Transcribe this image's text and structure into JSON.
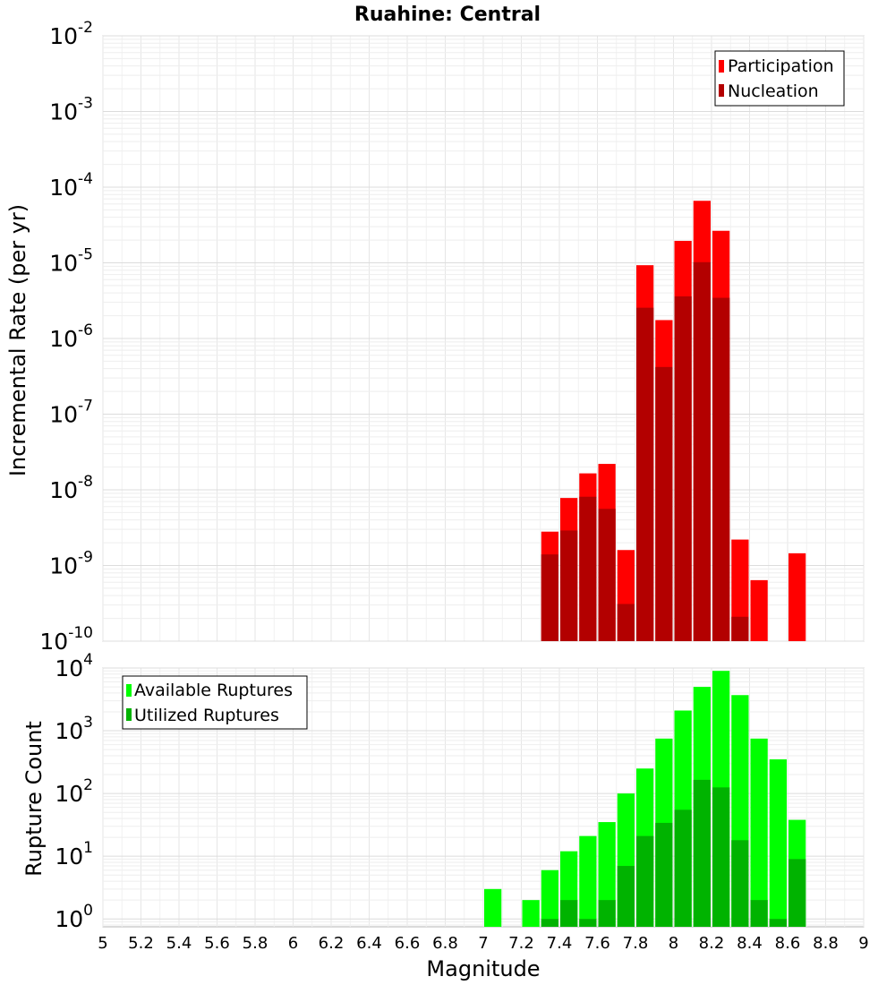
{
  "chart_data": [
    {
      "type": "bar",
      "title": "Ruahine: Central",
      "xlabel": "",
      "ylabel": "Incremental Rate (per yr)",
      "yscale": "log",
      "xlim": [
        5,
        9
      ],
      "ylim": [
        1e-10,
        0.01
      ],
      "ytick_labels": [
        {
          "base": "10",
          "exp": "-10"
        },
        {
          "base": "10",
          "exp": "-9"
        },
        {
          "base": "10",
          "exp": "-8"
        },
        {
          "base": "10",
          "exp": "-7"
        },
        {
          "base": "10",
          "exp": "-6"
        },
        {
          "base": "10",
          "exp": "-5"
        },
        {
          "base": "10",
          "exp": "-4"
        },
        {
          "base": "10",
          "exp": "-3"
        },
        {
          "base": "10",
          "exp": "-2"
        }
      ],
      "grid": true,
      "legend_position": "top-right",
      "bar_width": 0.1,
      "series": [
        {
          "name": "Participation",
          "color": "#ff0000",
          "x": [
            7.35,
            7.45,
            7.55,
            7.65,
            7.75,
            7.85,
            7.95,
            8.05,
            8.15,
            8.25,
            8.35,
            8.45,
            8.65
          ],
          "values": [
            2.8e-09,
            7.8e-09,
            1.65e-08,
            2.2e-08,
            1.6e-09,
            9.3e-06,
            1.75e-06,
            1.95e-05,
            6.6e-05,
            2.65e-05,
            2.2e-09,
            6.4e-10,
            1.45e-09
          ]
        },
        {
          "name": "Nucleation",
          "color": "#b30000",
          "x": [
            7.35,
            7.45,
            7.55,
            7.65,
            7.75,
            7.85,
            7.95,
            8.05,
            8.15,
            8.25,
            8.35
          ],
          "values": [
            1.4e-09,
            2.9e-09,
            8.1e-09,
            5.6e-09,
            3.1e-10,
            2.55e-06,
            4.2e-07,
            3.6e-06,
            1.02e-05,
            3.45e-06,
            2.1e-10
          ]
        }
      ]
    },
    {
      "type": "bar",
      "title": "",
      "xlabel": "Magnitude",
      "ylabel": "Rupture Count",
      "yscale": "log",
      "xlim": [
        5,
        9
      ],
      "ylim": [
        0.75,
        10000
      ],
      "ytick_labels": [
        {
          "base": "10",
          "exp": "0"
        },
        {
          "base": "10",
          "exp": "1"
        },
        {
          "base": "10",
          "exp": "2"
        },
        {
          "base": "10",
          "exp": "3"
        },
        {
          "base": "10",
          "exp": "4"
        }
      ],
      "xticks": [
        "5",
        "5.2",
        "5.4",
        "5.6",
        "5.8",
        "6",
        "6.2",
        "6.4",
        "6.6",
        "6.8",
        "7",
        "7.2",
        "7.4",
        "7.6",
        "7.8",
        "8",
        "8.2",
        "8.4",
        "8.6",
        "8.8",
        "9"
      ],
      "grid": true,
      "legend_position": "top-left",
      "bar_width": 0.1,
      "series": [
        {
          "name": "Available Ruptures",
          "color": "#00ff00",
          "x": [
            7.05,
            7.25,
            7.35,
            7.45,
            7.55,
            7.65,
            7.75,
            7.85,
            7.95,
            8.05,
            8.15,
            8.25,
            8.35,
            8.45,
            8.55,
            8.65
          ],
          "values": [
            3,
            2,
            6,
            12,
            21,
            35,
            100,
            250,
            750,
            2100,
            5000,
            9000,
            3700,
            750,
            350,
            38
          ]
        },
        {
          "name": "Utilized Ruptures",
          "color": "#00b300",
          "x": [
            7.35,
            7.45,
            7.55,
            7.65,
            7.75,
            7.85,
            7.95,
            8.05,
            8.15,
            8.25,
            8.35,
            8.45,
            8.55,
            8.65
          ],
          "values": [
            1,
            2,
            1,
            2,
            7,
            21,
            34,
            55,
            165,
            125,
            18,
            2,
            1,
            9
          ]
        }
      ]
    }
  ]
}
